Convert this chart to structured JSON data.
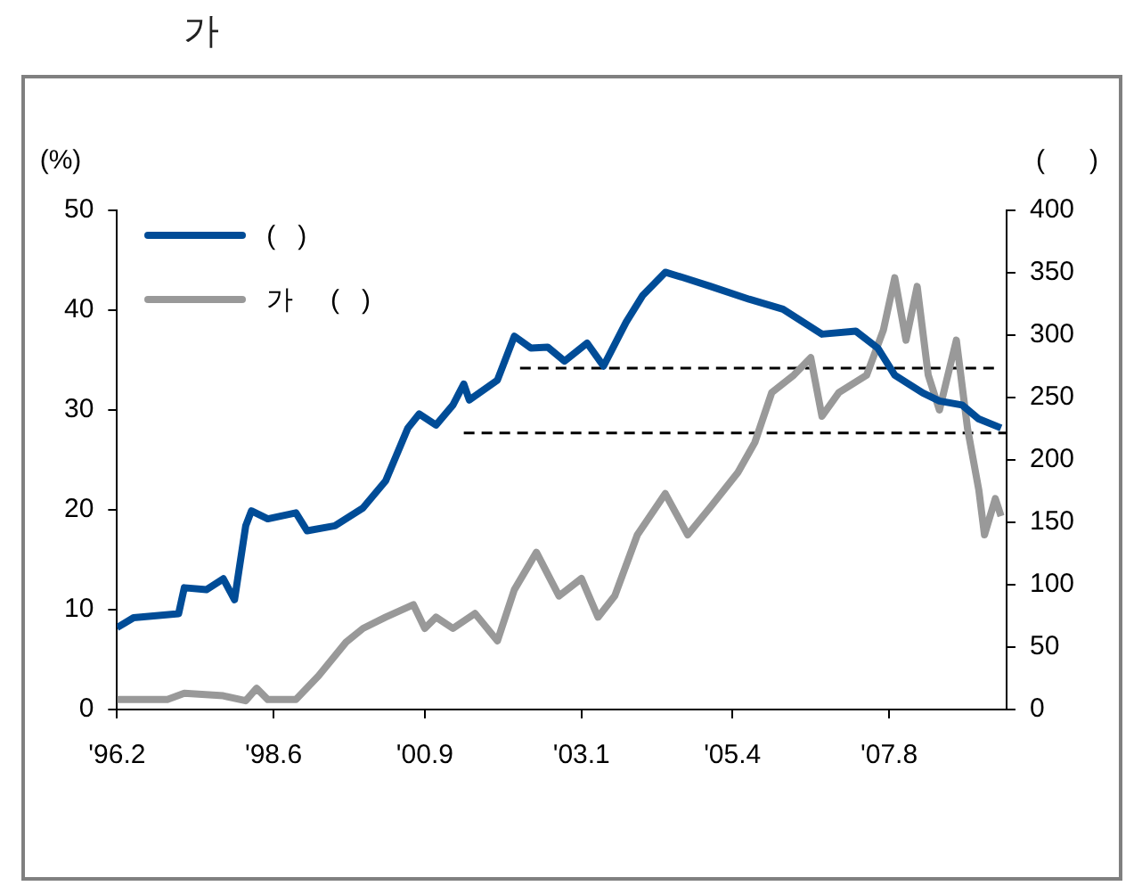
{
  "chart_data": {
    "type": "line",
    "title": "가",
    "ylabel": "(%)",
    "y2label": "(      )",
    "legend": "top left",
    "xlim": [
      "1996-02",
      "2009-05"
    ],
    "xticks": [
      {
        "value": "1996-02",
        "label": "'96.2"
      },
      {
        "value": "1998-06",
        "label": "'98.6"
      },
      {
        "value": "2000-09",
        "label": "'00.9"
      },
      {
        "value": "2003-01",
        "label": "'03.1"
      },
      {
        "value": "2005-04",
        "label": "'05.4"
      },
      {
        "value": "2007-08",
        "label": "'07.8"
      }
    ],
    "ylim": [
      0,
      50
    ],
    "yticks": [
      0,
      10,
      20,
      30,
      40,
      50
    ],
    "y2lim": [
      0,
      400
    ],
    "y2ticks": [
      0,
      50,
      100,
      150,
      200,
      250,
      300,
      350,
      400
    ],
    "series": [
      {
        "name": "(   )",
        "color": "#004c97",
        "axis": "y",
        "x": [
          "1996-02",
          "1996-05",
          "1997-01",
          "1997-02",
          "1997-06",
          "1997-09",
          "1997-11",
          "1998-01",
          "1998-02",
          "1998-05",
          "1998-10",
          "1998-12",
          "1999-05",
          "1999-10",
          "2000-02",
          "2000-06",
          "2000-08",
          "2000-11",
          "2001-02",
          "2001-04",
          "2001-05",
          "2001-10",
          "2002-01",
          "2002-04",
          "2002-07",
          "2002-10",
          "2003-02",
          "2003-05",
          "2003-09",
          "2003-12",
          "2004-04",
          "2004-07",
          "2004-12",
          "2005-07",
          "2006-01",
          "2006-08",
          "2007-02",
          "2007-06",
          "2007-09",
          "2008-02",
          "2008-05",
          "2008-09",
          "2008-12",
          "2009-04"
        ],
        "values": [
          8.2,
          9.2,
          9.6,
          12.2,
          12,
          13.1,
          11,
          18.4,
          19.9,
          19.1,
          19.7,
          17.9,
          18.4,
          20.2,
          22.9,
          28.2,
          29.6,
          28.5,
          30.5,
          32.6,
          31,
          33,
          37.4,
          36.2,
          36.3,
          34.9,
          36.7,
          34.4,
          38.8,
          41.5,
          43.8,
          43.3,
          42.4,
          41.1,
          40.1,
          37.6,
          37.9,
          36.2,
          33.5,
          31.7,
          30.9,
          30.5,
          29.1,
          28.2
        ]
      },
      {
        "name": "가     (   )",
        "color": "#999999",
        "axis": "y2",
        "x": [
          "1996-02",
          "1996-11",
          "1997-02",
          "1997-09",
          "1998-01",
          "1998-03",
          "1998-05",
          "1998-10",
          "1999-02",
          "1999-07",
          "1999-10",
          "2000-02",
          "2000-07",
          "2000-09",
          "2000-11",
          "2001-02",
          "2001-06",
          "2001-10",
          "2002-01",
          "2002-05",
          "2002-09",
          "2003-01",
          "2003-04",
          "2003-07",
          "2003-11",
          "2004-04",
          "2004-08",
          "2004-12",
          "2005-05",
          "2005-08",
          "2005-11",
          "2006-03",
          "2006-06",
          "2006-08",
          "2006-11",
          "2007-04",
          "2007-07",
          "2007-09",
          "2007-11",
          "2008-01",
          "2008-03",
          "2008-05",
          "2008-08",
          "2008-10",
          "2008-12",
          "2009-01",
          "2009-03",
          "2009-04"
        ],
        "values": [
          8,
          8,
          13,
          11,
          7,
          17,
          8,
          8,
          27,
          54,
          65,
          74,
          84,
          65,
          74,
          65,
          77,
          55,
          96,
          126,
          91,
          105,
          74,
          91,
          140,
          173,
          140,
          162,
          190,
          214,
          254,
          268,
          282,
          235,
          254,
          268,
          304,
          346,
          296,
          339,
          268,
          240,
          296,
          225,
          176,
          140,
          169,
          155
        ]
      },
      {
        "type": "line",
        "line_style": "dashed",
        "color": "#000000",
        "axis": "y",
        "x": [
          "2002-02",
          "2009-04"
        ],
        "values": [
          34.2,
          34.2
        ]
      },
      {
        "type": "line",
        "line_style": "dashed",
        "color": "#000000",
        "axis": "y",
        "x": [
          "2001-04",
          "2009-05"
        ],
        "values": [
          27.7,
          27.7
        ]
      }
    ]
  }
}
